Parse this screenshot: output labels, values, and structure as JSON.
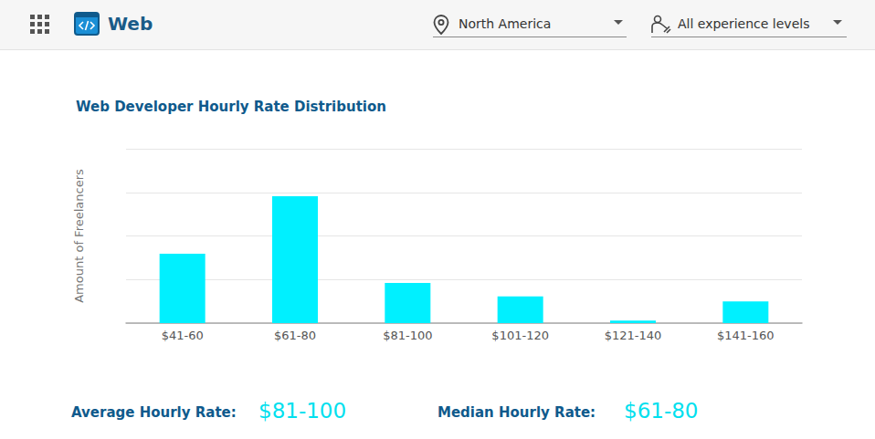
{
  "header": {
    "title": "Web",
    "location": "North America",
    "experience": "All experience levels"
  },
  "chart_data": {
    "type": "bar",
    "title": "Web Developer Hourly Rate Distribution",
    "y_label": "Amount of Freelancers",
    "categories": [
      "$41-60",
      "$61-80",
      "$81-100",
      "$101-120",
      "$121-140",
      "$141-160"
    ],
    "values": [
      1.59,
      2.91,
      0.92,
      0.61,
      0.06,
      0.5
    ],
    "color": "#00f0ff",
    "ylim": [
      0,
      4
    ],
    "yticks": [
      0,
      1,
      2,
      3,
      4
    ],
    "grid": true,
    "tick_labels": "x"
  },
  "summary": {
    "average_label": "Average Hourly Rate:",
    "average_value": "$81-100",
    "median_label": "Median Hourly Rate:",
    "median_value": "$61-80"
  }
}
